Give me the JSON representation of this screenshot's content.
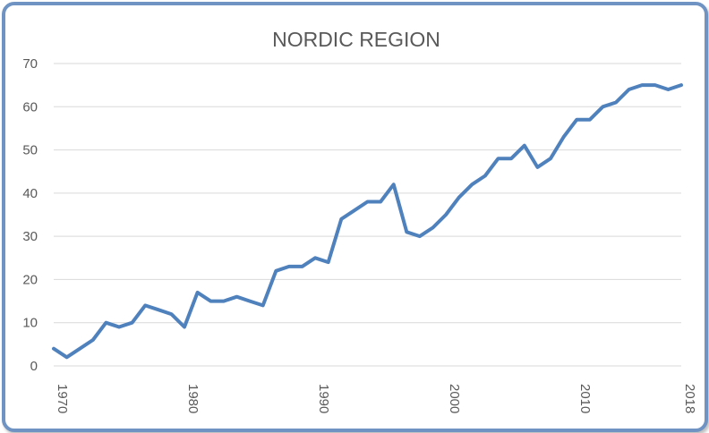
{
  "chart_data": {
    "type": "line",
    "title": "NORDIC REGION",
    "xlabel": "",
    "ylabel": "",
    "ylim": [
      0,
      70
    ],
    "yticks": [
      0,
      10,
      20,
      30,
      40,
      50,
      60,
      70
    ],
    "xlim": [
      1970,
      2018
    ],
    "xticks": [
      "1970",
      "1980",
      "1990",
      "2000",
      "2010",
      "2018"
    ],
    "grid": true,
    "legend": "none",
    "line_color": "#4f81bd",
    "grid_color": "#d9d9d9",
    "series": [
      {
        "x": [
          1970,
          1971,
          1972,
          1973,
          1974,
          1975,
          1976,
          1977,
          1978,
          1979,
          1980,
          1981,
          1982,
          1983,
          1984,
          1985,
          1986,
          1987,
          1988,
          1989,
          1990,
          1991,
          1992,
          1993,
          1994,
          1995,
          1996,
          1997,
          1998,
          1999,
          2000,
          2001,
          2002,
          2003,
          2004,
          2005,
          2006,
          2007,
          2008,
          2009,
          2010,
          2011,
          2012,
          2013,
          2014,
          2015,
          2016,
          2017,
          2018
        ],
        "values": [
          4,
          2,
          4,
          6,
          10,
          9,
          10,
          14,
          13,
          12,
          9,
          17,
          15,
          15,
          16,
          15,
          14,
          22,
          23,
          23,
          25,
          24,
          34,
          36,
          38,
          38,
          42,
          31,
          30,
          32,
          35,
          39,
          42,
          44,
          48,
          48,
          51,
          46,
          48,
          53,
          57,
          57,
          60,
          61,
          64,
          65,
          65,
          64,
          65
        ]
      }
    ]
  }
}
